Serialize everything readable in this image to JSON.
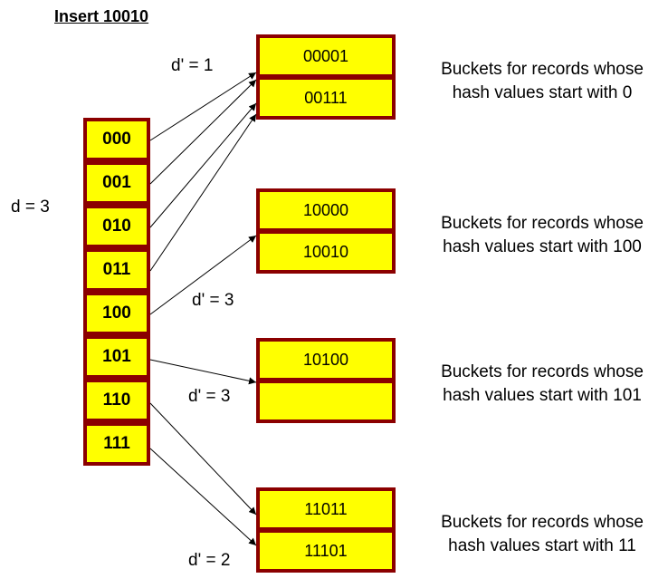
{
  "title": "Insert 10010",
  "global_depth_label": "d = 3",
  "directory": [
    "000",
    "001",
    "010",
    "011",
    "100",
    "101",
    "110",
    "111"
  ],
  "buckets": [
    {
      "records": [
        "00001",
        "00111"
      ],
      "local_depth_label": "d' = 1",
      "description": [
        "Buckets for records whose",
        "hash values start with 0"
      ]
    },
    {
      "records": [
        "10000",
        "10010"
      ],
      "local_depth_label": "d' = 3",
      "description": [
        "Buckets for records whose",
        "hash values start with 100"
      ]
    },
    {
      "records": [
        "10100",
        ""
      ],
      "local_depth_label": "d' = 3",
      "description": [
        "Buckets for records whose",
        "hash values start with 101"
      ]
    },
    {
      "records": [
        "11011",
        "11101"
      ],
      "local_depth_label": "d' = 2",
      "description": [
        "Buckets for records whose",
        "hash values start with 11"
      ]
    }
  ],
  "colors": {
    "frame": "#8b0000",
    "fill": "#ffff00"
  }
}
